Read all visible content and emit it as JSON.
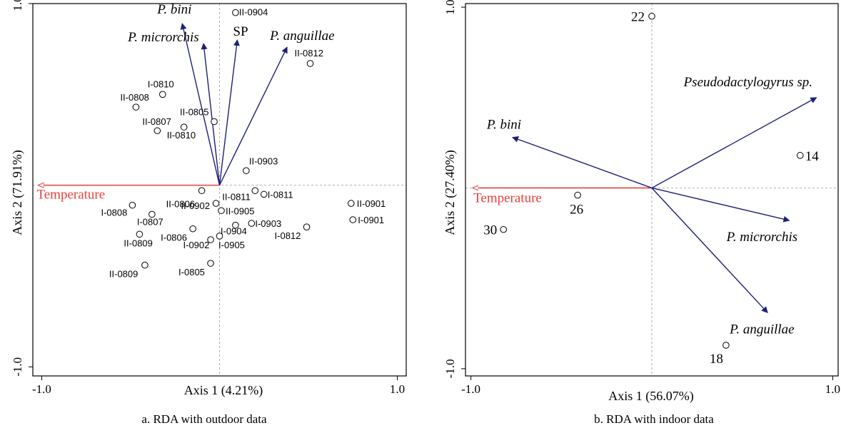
{
  "chart_data": [
    {
      "type": "scatter",
      "caption": "a. RDA with outdoor data",
      "xlabel": "Axis 1 (4.21%)",
      "ylabel": "Axis 2 (71.91%)",
      "xlim": [
        -1.05,
        1.05
      ],
      "ylim": [
        -1.05,
        1.0
      ],
      "xticks": [
        {
          "v": -1,
          "label": "-1.0"
        },
        {
          "v": 1,
          "label": "1.0"
        }
      ],
      "yticks": [
        {
          "v": 1,
          "label": "1.0"
        },
        {
          "v": -1,
          "label": "-1.0"
        }
      ],
      "species_arrows": [
        {
          "name": "P. bini",
          "x": -0.21,
          "y": 0.89,
          "italic": true
        },
        {
          "name": "P. microrchis",
          "x": -0.09,
          "y": 0.78,
          "italic": true
        },
        {
          "name": "SP",
          "x": 0.1,
          "y": 0.8,
          "italic": false
        },
        {
          "name": "P. anguillae",
          "x": 0.38,
          "y": 0.76,
          "italic": true
        }
      ],
      "env_arrows": [
        {
          "name": "Temperature",
          "x": -1.02,
          "y": 0.0
        }
      ],
      "sites": [
        {
          "label": "II-0904",
          "x": 0.09,
          "y": 0.95
        },
        {
          "label": "II-0812",
          "x": 0.51,
          "y": 0.67
        },
        {
          "label": "I-0810",
          "x": -0.32,
          "y": 0.5
        },
        {
          "label": "II-0808",
          "x": -0.47,
          "y": 0.43
        },
        {
          "label": "II-0805",
          "x": -0.03,
          "y": 0.35
        },
        {
          "label": "II-0807",
          "x": -0.35,
          "y": 0.3
        },
        {
          "label": "II-0810",
          "x": -0.2,
          "y": 0.32
        },
        {
          "label": "II-0903",
          "x": 0.15,
          "y": 0.08
        },
        {
          "label": "II-0806",
          "x": -0.1,
          "y": -0.03
        },
        {
          "label": "II-0811",
          "x": 0.2,
          "y": -0.03
        },
        {
          "label": "I-0811",
          "x": 0.25,
          "y": -0.05
        },
        {
          "label": "I-0808",
          "x": -0.49,
          "y": -0.11
        },
        {
          "label": "I-0807",
          "x": -0.38,
          "y": -0.16
        },
        {
          "label": "II-0902",
          "x": -0.02,
          "y": -0.1
        },
        {
          "label": "II-0905",
          "x": 0.01,
          "y": -0.14
        },
        {
          "label": "II-0901",
          "x": 0.74,
          "y": -0.1
        },
        {
          "label": "I-0901",
          "x": 0.75,
          "y": -0.19
        },
        {
          "label": "I-0903",
          "x": 0.18,
          "y": -0.21
        },
        {
          "label": "I-0904",
          "x": 0.09,
          "y": -0.22
        },
        {
          "label": "I-0812",
          "x": 0.49,
          "y": -0.23
        },
        {
          "label": "II-0809",
          "x": -0.45,
          "y": -0.27
        },
        {
          "label": "I-0806",
          "x": -0.15,
          "y": -0.24
        },
        {
          "label": "I-0905",
          "x": -0.05,
          "y": -0.3
        },
        {
          "label": "I-0902",
          "x": -0.0,
          "y": -0.28
        },
        {
          "label": "II-0809",
          "x": -0.42,
          "y": -0.44
        },
        {
          "label": "I-0805",
          "x": -0.05,
          "y": -0.43
        }
      ]
    },
    {
      "type": "scatter",
      "caption": "b. RDA with indoor data",
      "xlabel": "Axis 1 (56.07%)",
      "ylabel": "Axis 2 (27.40%)",
      "xlim": [
        -1.03,
        1.03
      ],
      "ylim": [
        -1.04,
        1.02
      ],
      "xticks": [
        {
          "v": -1,
          "label": "-1.0"
        },
        {
          "v": 1,
          "label": "1.0"
        }
      ],
      "yticks": [
        {
          "v": 1,
          "label": "1.0"
        },
        {
          "v": -1,
          "label": "-1.0"
        }
      ],
      "species_arrows": [
        {
          "name": "Pseudodactylogyrus sp.",
          "x": 0.91,
          "y": 0.5,
          "italic": true
        },
        {
          "name": "P. bini",
          "x": -0.77,
          "y": 0.28,
          "italic": true
        },
        {
          "name": "P. microrchis",
          "x": 0.76,
          "y": -0.18,
          "italic": true
        },
        {
          "name": "P. anguillae",
          "x": 0.64,
          "y": -0.69,
          "italic": true
        }
      ],
      "env_arrows": [
        {
          "name": "Temperature",
          "x": -0.99,
          "y": 0.0
        }
      ],
      "sites": [
        {
          "label": "22",
          "x": 0.0,
          "y": 0.95
        },
        {
          "label": "14",
          "x": 0.82,
          "y": 0.18
        },
        {
          "label": "26",
          "x": -0.41,
          "y": -0.04
        },
        {
          "label": "30",
          "x": -0.82,
          "y": -0.23
        },
        {
          "label": "18",
          "x": 0.41,
          "y": -0.87
        }
      ]
    }
  ]
}
